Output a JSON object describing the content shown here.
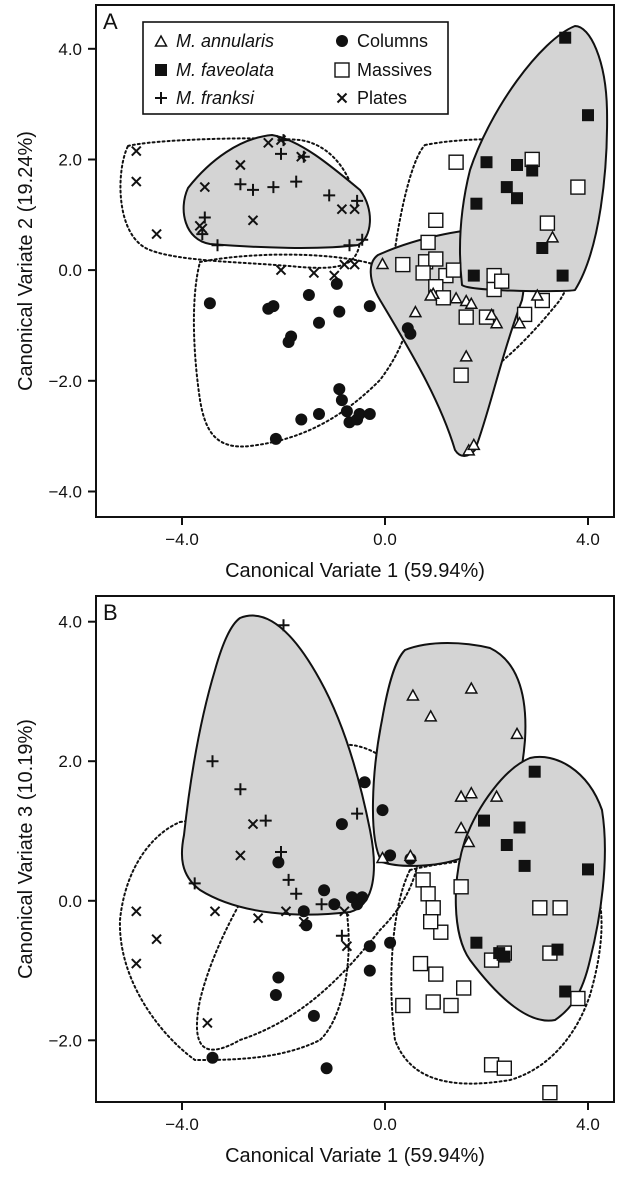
{
  "legend": {
    "annularis": "M. annularis",
    "faveolata": "M. faveolata",
    "franksi": "M. franksi",
    "columns": "Columns",
    "massives": "Massives",
    "plates": "Plates"
  },
  "colors": {
    "hull_fill": "#d4d4d4",
    "ink": "#111111",
    "background": "#ffffff"
  },
  "chart_data": [
    {
      "type": "scatter",
      "panel_label": "A",
      "xlabel": "Canonical Variate 1 (59.94%)",
      "ylabel": "Canonical Variate 2 (19.24%)",
      "xlim": [
        -5.7,
        4.5
      ],
      "ylim": [
        -4.4,
        4.7
      ],
      "xticks": [
        -4.0,
        0.0,
        4.0
      ],
      "yticks": [
        -4.0,
        -2.0,
        0.0,
        2.0,
        4.0
      ],
      "tick_labels_x": [
        "−4.0",
        "0.0",
        "4.0"
      ],
      "tick_labels_y": [
        "−4.0",
        "−2.0",
        "0.0",
        "2.0",
        "4.0"
      ],
      "legend_position": "top-left",
      "grid": false,
      "markers": {
        "annularis": [
          [
            -0.05,
            0.12
          ],
          [
            0.6,
            -0.75
          ],
          [
            0.95,
            -0.42
          ],
          [
            1.4,
            -0.5
          ],
          [
            1.6,
            -0.55
          ],
          [
            1.6,
            -1.55
          ],
          [
            1.65,
            -3.25
          ],
          [
            1.75,
            -3.15
          ],
          [
            1.7,
            -0.6
          ],
          [
            2.1,
            -0.8
          ],
          [
            2.2,
            -0.95
          ],
          [
            2.65,
            -0.95
          ],
          [
            3.0,
            -0.45
          ],
          [
            3.3,
            0.6
          ],
          [
            0.9,
            -0.45
          ]
        ],
        "faveolata": [
          [
            3.55,
            4.2
          ],
          [
            4.0,
            2.8
          ],
          [
            1.8,
            1.2
          ],
          [
            2.0,
            1.95
          ],
          [
            2.4,
            1.5
          ],
          [
            2.6,
            1.3
          ],
          [
            2.6,
            1.9
          ],
          [
            2.9,
            1.8
          ],
          [
            3.1,
            0.4
          ],
          [
            3.5,
            -0.1
          ],
          [
            1.75,
            -0.1
          ]
        ],
        "franksi": [
          [
            -2.0,
            2.35
          ],
          [
            -2.05,
            2.1
          ],
          [
            -1.6,
            2.05
          ],
          [
            -2.85,
            1.55
          ],
          [
            -2.6,
            1.45
          ],
          [
            -2.2,
            1.5
          ],
          [
            -1.75,
            1.6
          ],
          [
            -1.1,
            1.35
          ],
          [
            -0.55,
            1.25
          ],
          [
            -3.6,
            0.65
          ],
          [
            -3.3,
            0.45
          ],
          [
            -0.7,
            0.45
          ],
          [
            -0.45,
            0.55
          ],
          [
            -3.55,
            0.95
          ]
        ],
        "plates": [
          [
            -4.9,
            2.15
          ],
          [
            -4.9,
            1.6
          ],
          [
            -4.5,
            0.65
          ],
          [
            -3.55,
            1.5
          ],
          [
            -3.65,
            0.8
          ],
          [
            -3.6,
            0.75
          ],
          [
            -2.85,
            1.9
          ],
          [
            -2.6,
            0.9
          ],
          [
            -2.3,
            2.3
          ],
          [
            -2.05,
            2.35
          ],
          [
            -1.65,
            2.05
          ],
          [
            -0.85,
            1.1
          ],
          [
            -0.6,
            1.1
          ],
          [
            -2.05,
            0.0
          ],
          [
            -1.4,
            -0.05
          ],
          [
            -1.0,
            -0.1
          ],
          [
            -0.8,
            0.1
          ],
          [
            -0.6,
            0.1
          ]
        ],
        "columns": [
          [
            -3.45,
            -0.6
          ],
          [
            -2.3,
            -0.7
          ],
          [
            -2.2,
            -0.65
          ],
          [
            -1.85,
            -1.2
          ],
          [
            -1.9,
            -1.3
          ],
          [
            -1.5,
            -0.45
          ],
          [
            -1.3,
            -0.95
          ],
          [
            -0.95,
            -0.25
          ],
          [
            -0.9,
            -0.75
          ],
          [
            -0.3,
            -0.65
          ],
          [
            0.45,
            -1.05
          ],
          [
            0.5,
            -1.15
          ],
          [
            -2.15,
            -3.05
          ],
          [
            -1.65,
            -2.7
          ],
          [
            -1.3,
            -2.6
          ],
          [
            -0.9,
            -2.15
          ],
          [
            -0.85,
            -2.35
          ],
          [
            -0.75,
            -2.55
          ],
          [
            -0.7,
            -2.75
          ],
          [
            -0.55,
            -2.7
          ],
          [
            -0.5,
            -2.6
          ],
          [
            -0.3,
            -2.6
          ]
        ],
        "massives": [
          [
            1.4,
            1.95
          ],
          [
            2.9,
            2.0
          ],
          [
            3.8,
            1.5
          ],
          [
            3.2,
            0.85
          ],
          [
            1.0,
            0.9
          ],
          [
            0.85,
            0.5
          ],
          [
            0.35,
            0.1
          ],
          [
            0.8,
            0.15
          ],
          [
            1.0,
            0.2
          ],
          [
            0.75,
            -0.05
          ],
          [
            1.2,
            -0.1
          ],
          [
            1.35,
            0.0
          ],
          [
            1.0,
            -0.3
          ],
          [
            1.15,
            -0.5
          ],
          [
            1.6,
            -0.85
          ],
          [
            2.0,
            -0.85
          ],
          [
            2.15,
            -0.1
          ],
          [
            2.15,
            -0.35
          ],
          [
            2.3,
            -0.2
          ],
          [
            2.75,
            -0.8
          ],
          [
            3.1,
            -0.55
          ],
          [
            1.5,
            -1.9
          ]
        ]
      }
    },
    {
      "type": "scatter",
      "panel_label": "B",
      "xlabel": "Canonical Variate 1 (59.94%)",
      "ylabel": "Canonical Variate 3 (10.19%)",
      "xlim": [
        -5.7,
        4.5
      ],
      "ylim": [
        -3.1,
        4.15
      ],
      "xticks": [
        -4.0,
        0.0,
        4.0
      ],
      "yticks": [
        -2.0,
        0.0,
        2.0,
        4.0
      ],
      "tick_labels_x": [
        "−4.0",
        "0.0",
        "4.0"
      ],
      "tick_labels_y": [
        "−2.0",
        "0.0",
        "2.0",
        "4.0"
      ],
      "grid": false,
      "markers": {
        "annularis": [
          [
            0.55,
            2.95
          ],
          [
            0.9,
            2.65
          ],
          [
            1.7,
            3.05
          ],
          [
            2.6,
            2.4
          ],
          [
            1.5,
            1.5
          ],
          [
            1.7,
            1.55
          ],
          [
            2.2,
            1.5
          ],
          [
            1.5,
            1.05
          ],
          [
            1.65,
            0.85
          ],
          [
            -0.05,
            0.62
          ],
          [
            0.5,
            0.65
          ]
        ],
        "faveolata": [
          [
            2.95,
            1.85
          ],
          [
            2.65,
            1.05
          ],
          [
            2.4,
            0.8
          ],
          [
            2.75,
            0.5
          ],
          [
            4.0,
            0.45
          ],
          [
            1.95,
            1.15
          ],
          [
            1.8,
            -0.6
          ],
          [
            2.25,
            -0.75
          ],
          [
            2.35,
            -0.8
          ],
          [
            3.4,
            -0.7
          ],
          [
            3.55,
            -1.3
          ]
        ],
        "franksi": [
          [
            -2.0,
            3.95
          ],
          [
            -3.4,
            2.0
          ],
          [
            -2.85,
            1.6
          ],
          [
            -2.35,
            1.15
          ],
          [
            -2.05,
            0.7
          ],
          [
            -0.55,
            1.25
          ],
          [
            -1.9,
            0.3
          ],
          [
            -1.75,
            0.1
          ],
          [
            -1.25,
            -0.05
          ],
          [
            -3.75,
            0.25
          ],
          [
            -0.85,
            -0.5
          ]
        ],
        "plates": [
          [
            -4.9,
            -0.15
          ],
          [
            -4.5,
            -0.55
          ],
          [
            -4.9,
            -0.9
          ],
          [
            -3.35,
            -0.15
          ],
          [
            -2.85,
            0.65
          ],
          [
            -2.5,
            -0.25
          ],
          [
            -2.6,
            1.1
          ],
          [
            -1.95,
            -0.15
          ],
          [
            -1.6,
            -0.3
          ],
          [
            -0.75,
            -0.65
          ],
          [
            -0.8,
            -0.15
          ],
          [
            -3.5,
            -1.75
          ]
        ],
        "columns": [
          [
            -2.1,
            0.55
          ],
          [
            -1.6,
            -0.15
          ],
          [
            -1.55,
            -0.35
          ],
          [
            -1.2,
            0.15
          ],
          [
            -1.0,
            -0.05
          ],
          [
            -0.85,
            1.1
          ],
          [
            -0.65,
            0.05
          ],
          [
            -0.55,
            -0.05
          ],
          [
            -0.4,
            1.7
          ],
          [
            -0.05,
            1.3
          ],
          [
            0.1,
            0.65
          ],
          [
            0.5,
            0.6
          ],
          [
            -0.3,
            -0.65
          ],
          [
            -0.3,
            -1.0
          ],
          [
            0.1,
            -0.6
          ],
          [
            -2.1,
            -1.1
          ],
          [
            -2.15,
            -1.35
          ],
          [
            -1.4,
            -1.65
          ],
          [
            -1.15,
            -2.4
          ],
          [
            -3.4,
            -2.25
          ],
          [
            -0.45,
            0.05
          ]
        ],
        "massives": [
          [
            0.75,
            0.3
          ],
          [
            0.85,
            0.1
          ],
          [
            0.95,
            -0.1
          ],
          [
            1.1,
            -0.45
          ],
          [
            0.9,
            -0.3
          ],
          [
            0.7,
            -0.9
          ],
          [
            1.0,
            -1.05
          ],
          [
            1.5,
            0.2
          ],
          [
            0.95,
            -1.45
          ],
          [
            1.3,
            -1.5
          ],
          [
            1.55,
            -1.25
          ],
          [
            0.35,
            -1.5
          ],
          [
            2.1,
            -0.85
          ],
          [
            2.35,
            -0.75
          ],
          [
            3.25,
            -0.75
          ],
          [
            3.05,
            -0.1
          ],
          [
            3.45,
            -0.1
          ],
          [
            3.8,
            -1.4
          ],
          [
            2.1,
            -2.35
          ],
          [
            2.35,
            -2.4
          ],
          [
            3.25,
            -2.75
          ]
        ]
      }
    }
  ]
}
